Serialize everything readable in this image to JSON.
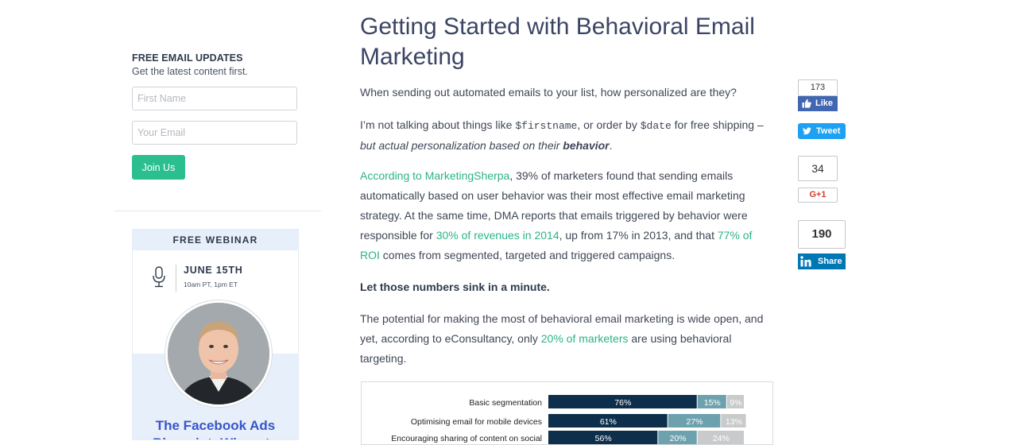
{
  "sidebar": {
    "signup_title": "FREE EMAIL UPDATES",
    "signup_subtitle": "Get the latest content first.",
    "first_name_placeholder": "First Name",
    "email_placeholder": "Your Email",
    "join_button": "Join Us",
    "webinar": {
      "header": "FREE WEBINAR",
      "date": "JUNE 15TH",
      "time": "10am PT, 1pm ET",
      "title": "The Facebook Ads Blueprint: Where to"
    }
  },
  "article": {
    "title": "Getting Started with Behavioral Email Marketing",
    "p1": "When sending out automated emails to your list, how personalized are they?",
    "p2": {
      "before_first": "I’m not talking about things like ",
      "code_first": "$firstname",
      "middle": ", or order by ",
      "code_date": "$date",
      "after": " for free shipping –",
      "italic": "but actual personalization based on their ",
      "italic_bold": "behavior",
      "end": "."
    },
    "p3": {
      "link1": "According to MarketingSherpa",
      "t1": ", 39% of marketers found that sending emails automatically based on user behavior was their most effective email marketing strategy. At the same time, DMA reports that emails triggered by behavior were responsible for ",
      "link2": "30% of revenues in 2014",
      "t2": ", up from 17% in 2013, and that ",
      "link3": "77% of ROI",
      "t3": " comes from segmented, targeted and triggered campaigns."
    },
    "p4": "Let those numbers sink in a minute.",
    "p5": {
      "t1": "The potential for making the most of behavioral email marketing is wide open, and yet, according to eConsultancy, only ",
      "link": "20% of marketers",
      "t2": " are using behavioral targeting."
    }
  },
  "chart_data": {
    "type": "bar",
    "stacked": true,
    "orientation": "horizontal",
    "categories": [
      "Basic segmentation",
      "Optimising email for mobile devices",
      "Encouraging sharing of content on social"
    ],
    "series": [
      {
        "values": [
          76,
          61,
          56
        ],
        "labels": [
          "76%",
          "61%",
          "56%"
        ],
        "color": "#0e2f4c"
      },
      {
        "values": [
          15,
          27,
          20
        ],
        "labels": [
          "15%",
          "27%",
          "20%"
        ],
        "color": "#6da1ad"
      },
      {
        "values": [
          9,
          13,
          24
        ],
        "labels": [
          "9%",
          "13%",
          "24%"
        ],
        "color": "#c9cacb"
      }
    ],
    "xlim": [
      0,
      100
    ]
  },
  "share": {
    "fb_count": "173",
    "fb_label": "Like",
    "tweet_label": "Tweet",
    "gplus_count": "34",
    "gplus_label": "G+1",
    "linkedin_count": "190",
    "linkedin_label": "Share",
    "colors": {
      "facebook": "#4267b2",
      "twitter": "#1da1f2",
      "gplus": "#d23c2f",
      "linkedin": "#0077b5",
      "accent": "#2bbf90"
    }
  }
}
